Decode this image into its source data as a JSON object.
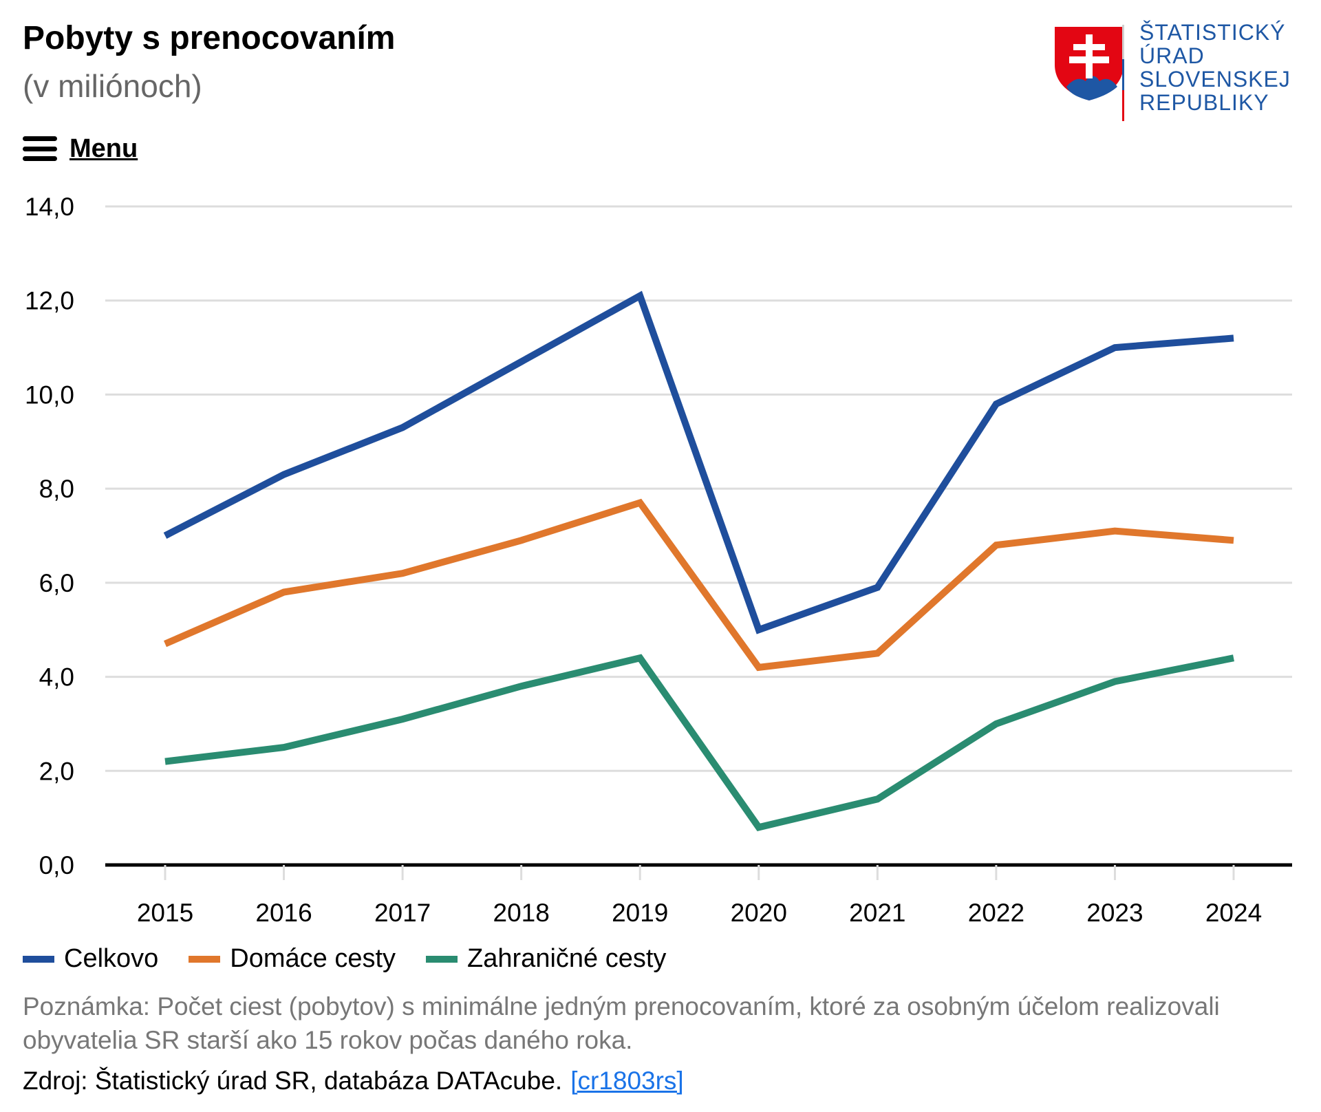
{
  "header": {
    "title": "Pobyty s prenocovaním",
    "subtitle": "(v miliónoch)"
  },
  "logo": {
    "lines": [
      "ŠTATISTICKÝ",
      "ÚRAD",
      "SLOVENSKEJ",
      "REPUBLIKY"
    ]
  },
  "menu": {
    "label": "Menu"
  },
  "chart_data": {
    "type": "line",
    "categories": [
      "2015",
      "2016",
      "2017",
      "2018",
      "2019",
      "2020",
      "2021",
      "2022",
      "2023",
      "2024"
    ],
    "series": [
      {
        "name": "Celkovo",
        "color": "#1f4e9c",
        "values": [
          7.0,
          8.3,
          9.3,
          10.7,
          12.1,
          5.0,
          5.9,
          9.8,
          11.0,
          11.2
        ]
      },
      {
        "name": "Domáce cesty",
        "color": "#e0772c",
        "values": [
          4.7,
          5.8,
          6.2,
          6.9,
          7.7,
          4.2,
          4.5,
          6.8,
          7.1,
          6.9
        ]
      },
      {
        "name": "Zahraničné cesty",
        "color": "#2a8c71",
        "values": [
          2.2,
          2.5,
          3.1,
          3.8,
          4.4,
          0.8,
          1.4,
          3.0,
          3.9,
          4.4
        ]
      }
    ],
    "yticks": [
      "0,0",
      "2,0",
      "4,0",
      "6,0",
      "8,0",
      "10,0",
      "12,0",
      "14,0"
    ],
    "ylim": [
      0,
      14
    ],
    "grid": true,
    "legend_position": "bottom-left"
  },
  "footer": {
    "note": "Poznámka: Počet ciest (pobytov) s minimálne jedným prenocovaním, ktoré za osobným účelom realizovali obyvatelia SR starší ako 15 rokov počas daného roka.",
    "source_text": "Zdroj: Štatistický úrad SR, databáza DATAcube.",
    "source_link": "[cr1803rs]"
  }
}
